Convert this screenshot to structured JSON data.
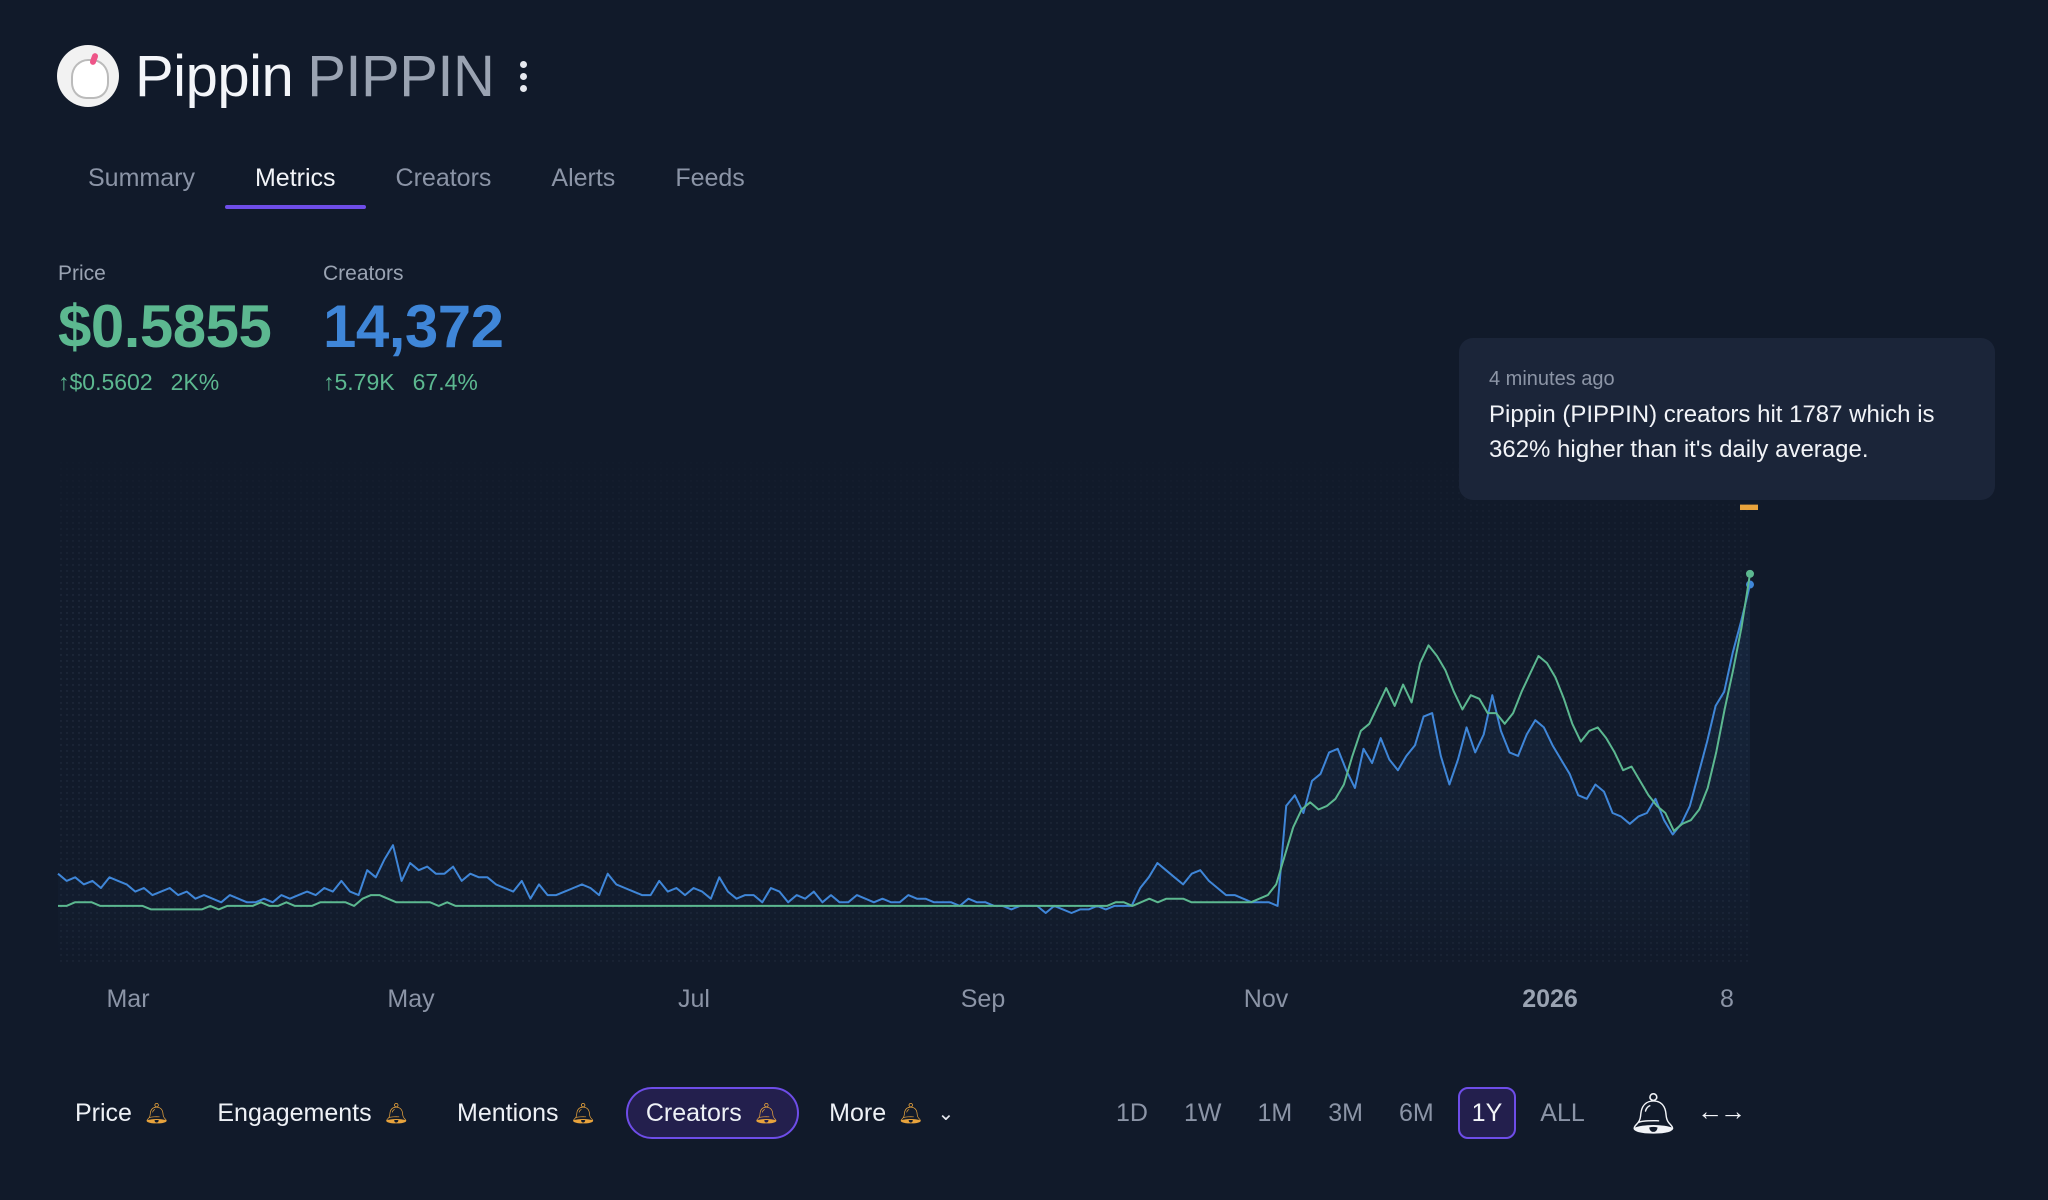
{
  "header": {
    "name": "Pippin",
    "symbol": "PIPPIN"
  },
  "tabs": [
    "Summary",
    "Metrics",
    "Creators",
    "Alerts",
    "Feeds"
  ],
  "active_tab": "Metrics",
  "metrics": {
    "price": {
      "label": "Price",
      "value": "$0.5855",
      "change_abs": "↑$0.5602",
      "change_pct": "2K%"
    },
    "creators": {
      "label": "Creators",
      "value": "14,372",
      "change_abs": "↑5.79K",
      "change_pct": "67.4%"
    }
  },
  "tooltip": {
    "time": "4 minutes ago",
    "message": "Pippin (PIPPIN) creators hit 1787 which is 362% higher than it's daily average."
  },
  "colors": {
    "price_line": "#5cb890",
    "creators_line": "#3f86d8",
    "accent": "#6e4de8",
    "alert": "#e8a33c"
  },
  "chart_data": {
    "type": "line",
    "x_ticks": [
      "Mar",
      "May",
      "Jul",
      "Sep",
      "Nov",
      "2026",
      "8"
    ],
    "x_ticks_bold": [
      "2026"
    ],
    "ylim": [
      0,
      100
    ],
    "series": [
      {
        "name": "Creators",
        "values": [
          11,
          9,
          10,
          8,
          9,
          7,
          10,
          9,
          8,
          6,
          7,
          5,
          6,
          7,
          5,
          6,
          4,
          5,
          4,
          3,
          5,
          4,
          3,
          3,
          4,
          3,
          5,
          4,
          5,
          6,
          5,
          7,
          6,
          9,
          6,
          5,
          12,
          10,
          15,
          19,
          9,
          14,
          12,
          13,
          11,
          11,
          13,
          9,
          11,
          10,
          10,
          8,
          7,
          6,
          9,
          4,
          8,
          5,
          5,
          6,
          7,
          8,
          7,
          5,
          11,
          8,
          7,
          6,
          5,
          5,
          9,
          6,
          7,
          5,
          7,
          6,
          4,
          10,
          6,
          4,
          5,
          5,
          3,
          7,
          6,
          3,
          5,
          4,
          6,
          3,
          5,
          3,
          3,
          5,
          4,
          3,
          4,
          3,
          3,
          5,
          4,
          4,
          3,
          3,
          3,
          2,
          4,
          3,
          3,
          2,
          2,
          1,
          2,
          2,
          2,
          0,
          2,
          1,
          0,
          1,
          1,
          2,
          1,
          2,
          2,
          2,
          7,
          10,
          14,
          12,
          10,
          8,
          11,
          12,
          9,
          7,
          5,
          5,
          4,
          3,
          3,
          3,
          2,
          30,
          33,
          28,
          37,
          39,
          45,
          46,
          40,
          35,
          46,
          42,
          49,
          43,
          40,
          44,
          47,
          55,
          56,
          44,
          36,
          43,
          52,
          45,
          50,
          61,
          51,
          45,
          44,
          50,
          54,
          52,
          47,
          43,
          39,
          33,
          32,
          36,
          34,
          28,
          27,
          25,
          27,
          28,
          32,
          26,
          22,
          25,
          30,
          39,
          48,
          58,
          62,
          73,
          82,
          92
        ]
      },
      {
        "name": "Price",
        "values": [
          2,
          2,
          3,
          3,
          3,
          2,
          2,
          2,
          2,
          2,
          2,
          1,
          1,
          1,
          1,
          1,
          1,
          1,
          2,
          1,
          2,
          2,
          2,
          2,
          3,
          2,
          2,
          3,
          2,
          2,
          2,
          3,
          3,
          3,
          3,
          2,
          4,
          5,
          5,
          4,
          3,
          3,
          3,
          3,
          3,
          2,
          3,
          2,
          2,
          2,
          2,
          2,
          2,
          2,
          2,
          2,
          2,
          2,
          2,
          2,
          2,
          2,
          2,
          2,
          2,
          2,
          2,
          2,
          2,
          2,
          2,
          2,
          2,
          2,
          2,
          2,
          2,
          2,
          2,
          2,
          2,
          2,
          2,
          2,
          2,
          2,
          2,
          2,
          2,
          2,
          2,
          2,
          2,
          2,
          2,
          2,
          2,
          2,
          2,
          2,
          2,
          2,
          2,
          2,
          2,
          2,
          2,
          2,
          2,
          2,
          2,
          2,
          2,
          2,
          2,
          2,
          2,
          2,
          2,
          2,
          2,
          2,
          2,
          2,
          2,
          3,
          3,
          2,
          3,
          4,
          3,
          4,
          4,
          4,
          3,
          3,
          3,
          3,
          3,
          3,
          3,
          3,
          4,
          5,
          8,
          16,
          24,
          29,
          31,
          29,
          30,
          32,
          36,
          44,
          51,
          53,
          58,
          63,
          58,
          64,
          59,
          70,
          75,
          72,
          68,
          62,
          57,
          61,
          60,
          56,
          56,
          53,
          56,
          62,
          67,
          72,
          70,
          66,
          60,
          53,
          48,
          51,
          52,
          49,
          45,
          40,
          41,
          37,
          33,
          30,
          28,
          23,
          25,
          26,
          29,
          35,
          45,
          57,
          68,
          80,
          95
        ]
      }
    ]
  },
  "metric_buttons": [
    {
      "label": "Price"
    },
    {
      "label": "Engagements"
    },
    {
      "label": "Mentions"
    },
    {
      "label": "Creators"
    },
    {
      "label": "More"
    }
  ],
  "active_metric": "Creators",
  "ranges": [
    "1D",
    "1W",
    "1M",
    "3M",
    "6M",
    "1Y",
    "ALL"
  ],
  "active_range": "1Y",
  "icons": {
    "alert": "bell-icon",
    "expand": "expand-arrows-icon",
    "more": "chevron-down-icon",
    "menu": "kebab-menu-icon"
  }
}
